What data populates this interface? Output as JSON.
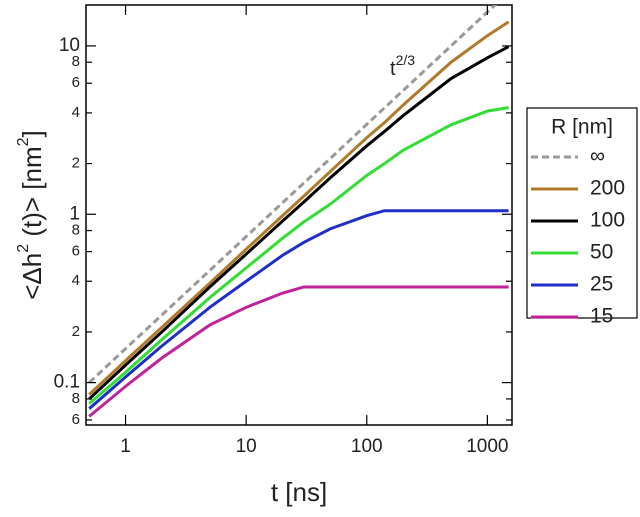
{
  "chart_data": {
    "type": "line",
    "log_x": true,
    "log_y": true,
    "xlabel": "t [ns]",
    "ylabel": [
      {
        "text": "<Δh"
      },
      {
        "text": "2",
        "sup": true
      },
      {
        "text": " (t)> [nm"
      },
      {
        "text": "2",
        "sup": true
      },
      {
        "text": "]"
      }
    ],
    "annotation": {
      "text": "t",
      "superscript": "2/3"
    },
    "legend_title": "R [nm]",
    "legend": "right",
    "x": [
      0.5,
      1,
      2,
      5,
      10,
      20,
      30,
      50,
      100,
      140,
      200,
      500,
      1000,
      1500
    ],
    "series": [
      {
        "name": "∞",
        "color": "#999999",
        "style": "dashed",
        "values": [
          0.1,
          0.159,
          0.252,
          0.464,
          0.737,
          1.17,
          1.53,
          2.15,
          3.42,
          4.28,
          5.43,
          10,
          15.9,
          20.8
        ]
      },
      {
        "name": "200",
        "color": "#b07a2a",
        "style": "solid",
        "values": [
          0.085,
          0.135,
          0.213,
          0.39,
          0.62,
          0.98,
          1.28,
          1.8,
          2.85,
          3.5,
          4.45,
          8,
          11.5,
          13.9
        ]
      },
      {
        "name": "100",
        "color": "#000000",
        "style": "solid",
        "values": [
          0.08,
          0.127,
          0.2,
          0.37,
          0.58,
          0.91,
          1.18,
          1.65,
          2.55,
          3.1,
          3.85,
          6.4,
          8.5,
          9.9
        ]
      },
      {
        "name": "50",
        "color": "#33dd33",
        "style": "solid",
        "values": [
          0.075,
          0.115,
          0.18,
          0.32,
          0.48,
          0.72,
          0.9,
          1.15,
          1.7,
          2.0,
          2.4,
          3.4,
          4.1,
          4.3
        ]
      },
      {
        "name": "25",
        "color": "#1f2fc8",
        "style": "solid",
        "values": [
          0.07,
          0.108,
          0.165,
          0.28,
          0.4,
          0.57,
          0.68,
          0.82,
          0.98,
          1.05,
          1.05,
          1.05,
          1.05,
          1.05
        ]
      },
      {
        "name": "15",
        "color": "#c0229a",
        "style": "solid",
        "values": [
          0.063,
          0.095,
          0.14,
          0.22,
          0.28,
          0.34,
          0.37,
          0.37,
          0.37,
          0.37,
          0.37,
          0.37,
          0.37,
          0.37
        ]
      }
    ],
    "xlim": [
      0.47,
      1600
    ],
    "ylim": [
      0.056,
      17.5
    ],
    "xticks": [
      1,
      10,
      100,
      1000
    ],
    "yticks": [
      {
        "value": 0.06,
        "label": "6"
      },
      {
        "value": 0.08,
        "label": "8"
      },
      0.1,
      {
        "value": 0.2,
        "label": "2"
      },
      {
        "value": 0.4,
        "label": "4"
      },
      {
        "value": 0.6,
        "label": "6"
      },
      {
        "value": 0.8,
        "label": "8"
      },
      1,
      {
        "value": 2,
        "label": "2"
      },
      {
        "value": 4,
        "label": "4"
      },
      {
        "value": 6,
        "label": "6"
      },
      {
        "value": 8,
        "label": "8"
      },
      10
    ]
  }
}
